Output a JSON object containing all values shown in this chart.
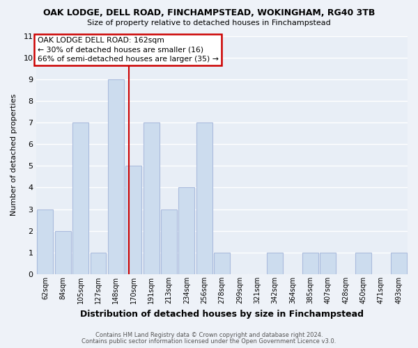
{
  "title": "OAK LODGE, DELL ROAD, FINCHAMPSTEAD, WOKINGHAM, RG40 3TB",
  "subtitle": "Size of property relative to detached houses in Finchampstead",
  "xlabel": "Distribution of detached houses by size in Finchampstead",
  "ylabel": "Number of detached properties",
  "bar_labels": [
    "62sqm",
    "84sqm",
    "105sqm",
    "127sqm",
    "148sqm",
    "170sqm",
    "191sqm",
    "213sqm",
    "234sqm",
    "256sqm",
    "278sqm",
    "299sqm",
    "321sqm",
    "342sqm",
    "364sqm",
    "385sqm",
    "407sqm",
    "428sqm",
    "450sqm",
    "471sqm",
    "493sqm"
  ],
  "bar_values": [
    3,
    2,
    7,
    1,
    9,
    5,
    7,
    3,
    4,
    7,
    1,
    0,
    0,
    1,
    0,
    1,
    1,
    0,
    1,
    0,
    1
  ],
  "bar_color": "#ccdcee",
  "bar_edge_color": "#aabbdd",
  "reference_line_x": 4.73,
  "annotation_title": "OAK LODGE DELL ROAD: 162sqm",
  "annotation_line1": "← 30% of detached houses are smaller (16)",
  "annotation_line2": "66% of semi-detached houses are larger (35) →",
  "ylim": [
    0,
    11
  ],
  "yticks": [
    0,
    1,
    2,
    3,
    4,
    5,
    6,
    7,
    8,
    9,
    10,
    11
  ],
  "footer1": "Contains HM Land Registry data © Crown copyright and database right 2024.",
  "footer2": "Contains public sector information licensed under the Open Government Licence v3.0.",
  "bg_color": "#eef2f8",
  "plot_bg_color": "#e8eef6",
  "grid_color": "#ffffff",
  "annotation_box_color": "#ffffff",
  "annotation_box_edge": "#cc0000",
  "ref_line_color": "#cc0000"
}
